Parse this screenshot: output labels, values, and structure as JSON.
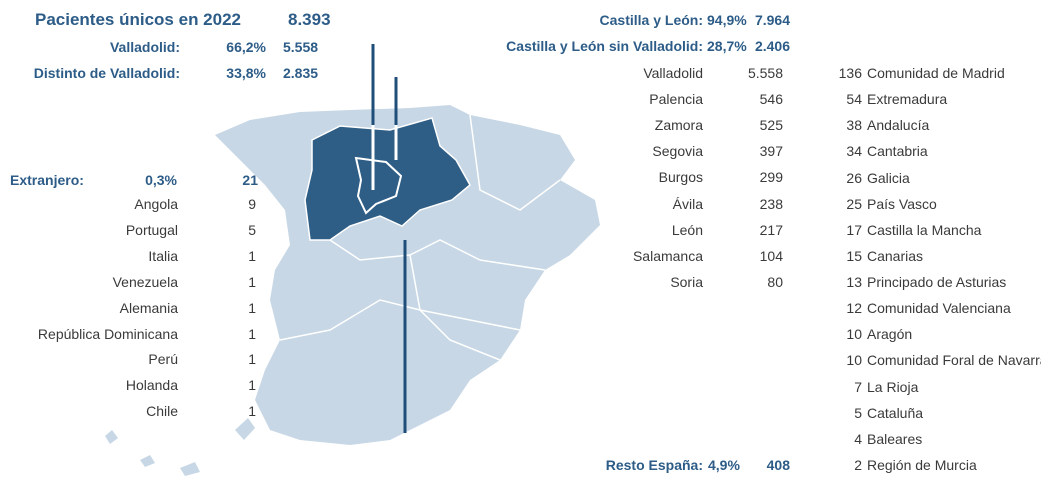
{
  "summary": {
    "title": "Pacientes únicos en 2022",
    "total": "8.393",
    "rows": [
      {
        "label": "Valladolid:",
        "percent": "66,2%",
        "count": "5.558"
      },
      {
        "label": "Distinto de Valladolid:",
        "percent": "33,8%",
        "count": "2.835"
      }
    ]
  },
  "foreign": {
    "label": "Extranjero:",
    "percent": "0,3%",
    "count": 21,
    "countries": [
      {
        "name": "Angola",
        "count": 9
      },
      {
        "name": "Portugal",
        "count": 5
      },
      {
        "name": "Italia",
        "count": 1
      },
      {
        "name": "Venezuela",
        "count": 1
      },
      {
        "name": "Alemania",
        "count": 1
      },
      {
        "name": "República Dominicana",
        "count": 1
      },
      {
        "name": "Perú",
        "count": 1
      },
      {
        "name": "Holanda",
        "count": 1
      },
      {
        "name": "Chile",
        "count": 1
      }
    ]
  },
  "castilla_leon": {
    "rows": [
      {
        "label": "Castilla y León:",
        "percent": "94,9%",
        "count": "7.964"
      },
      {
        "label": "Castilla y León sin Valladolid:",
        "percent": "28,7%",
        "count": "2.406"
      }
    ],
    "provinces": [
      {
        "name": "Valladolid",
        "count": "5.558"
      },
      {
        "name": "Palencia",
        "count": 546
      },
      {
        "name": "Zamora",
        "count": 525
      },
      {
        "name": "Segovia",
        "count": 397
      },
      {
        "name": "Burgos",
        "count": 299
      },
      {
        "name": "Ávila",
        "count": 238
      },
      {
        "name": "León",
        "count": 217
      },
      {
        "name": "Salamanca",
        "count": 104
      },
      {
        "name": "Soria",
        "count": 80
      }
    ]
  },
  "rest_of_spain": {
    "label": "Resto España:",
    "percent": "4,9%",
    "count": 408,
    "regions": [
      {
        "count": 136,
        "name": "Comunidad de Madrid"
      },
      {
        "count": 54,
        "name": "Extremadura"
      },
      {
        "count": 38,
        "name": "Andalucía"
      },
      {
        "count": 34,
        "name": "Cantabria"
      },
      {
        "count": 26,
        "name": "Galicia"
      },
      {
        "count": 25,
        "name": "País Vasco"
      },
      {
        "count": 17,
        "name": "Castilla la Mancha"
      },
      {
        "count": 15,
        "name": "Canarias"
      },
      {
        "count": 13,
        "name": "Principado de Asturias"
      },
      {
        "count": 12,
        "name": "Comunidad Valenciana"
      },
      {
        "count": 10,
        "name": "Aragón"
      },
      {
        "count": 10,
        "name": "Comunidad Foral de Navarra"
      },
      {
        "count": 7,
        "name": "La Rioja"
      },
      {
        "count": 5,
        "name": "Cataluña"
      },
      {
        "count": 4,
        "name": "Baleares"
      },
      {
        "count": 2,
        "name": "Región de Murcia"
      }
    ]
  }
}
